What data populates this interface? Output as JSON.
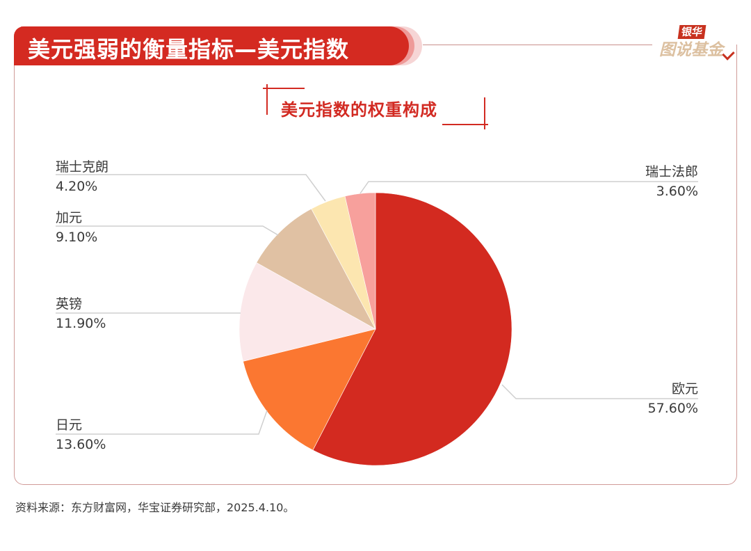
{
  "header": {
    "title": "美元强弱的衡量指标—美元指数",
    "logo_top": "银华",
    "logo_bottom": "图说基金"
  },
  "colors": {
    "brand_red": "#d42a21",
    "frame_border": "#d09a98",
    "leader_line": "#cccccc"
  },
  "chart_data": {
    "type": "pie",
    "title": "美元指数的权重构成",
    "start_angle_deg": 0,
    "direction": "clockwise",
    "legend_position": "none (outside labels with leader lines)",
    "slices": [
      {
        "label": "欧元",
        "value": 57.6,
        "display": "57.60%",
        "color": "#d32a20"
      },
      {
        "label": "日元",
        "value": 13.6,
        "display": "13.60%",
        "color": "#fb7731"
      },
      {
        "label": "英镑",
        "value": 11.9,
        "display": "11.90%",
        "color": "#fbe8ea"
      },
      {
        "label": "加元",
        "value": 9.1,
        "display": "9.10%",
        "color": "#e0c1a3"
      },
      {
        "label": "瑞士克朗",
        "value": 4.2,
        "display": "4.20%",
        "color": "#fce6b0"
      },
      {
        "label": "瑞士法郎",
        "value": 3.6,
        "display": "3.60%",
        "color": "#f7a09c"
      }
    ]
  },
  "labels": {
    "swiss_krona": {
      "name": "瑞士克朗",
      "pct": "4.20%"
    },
    "cad": {
      "name": "加元",
      "pct": "9.10%"
    },
    "gbp": {
      "name": "英镑",
      "pct": "11.90%"
    },
    "jpy": {
      "name": "日元",
      "pct": "13.60%"
    },
    "chf": {
      "name": "瑞士法郎",
      "pct": "3.60%"
    },
    "eur": {
      "name": "欧元",
      "pct": "57.60%"
    }
  },
  "footer": {
    "source": "资料来源：东方财富网，华宝证券研究部，2025.4.10。"
  }
}
